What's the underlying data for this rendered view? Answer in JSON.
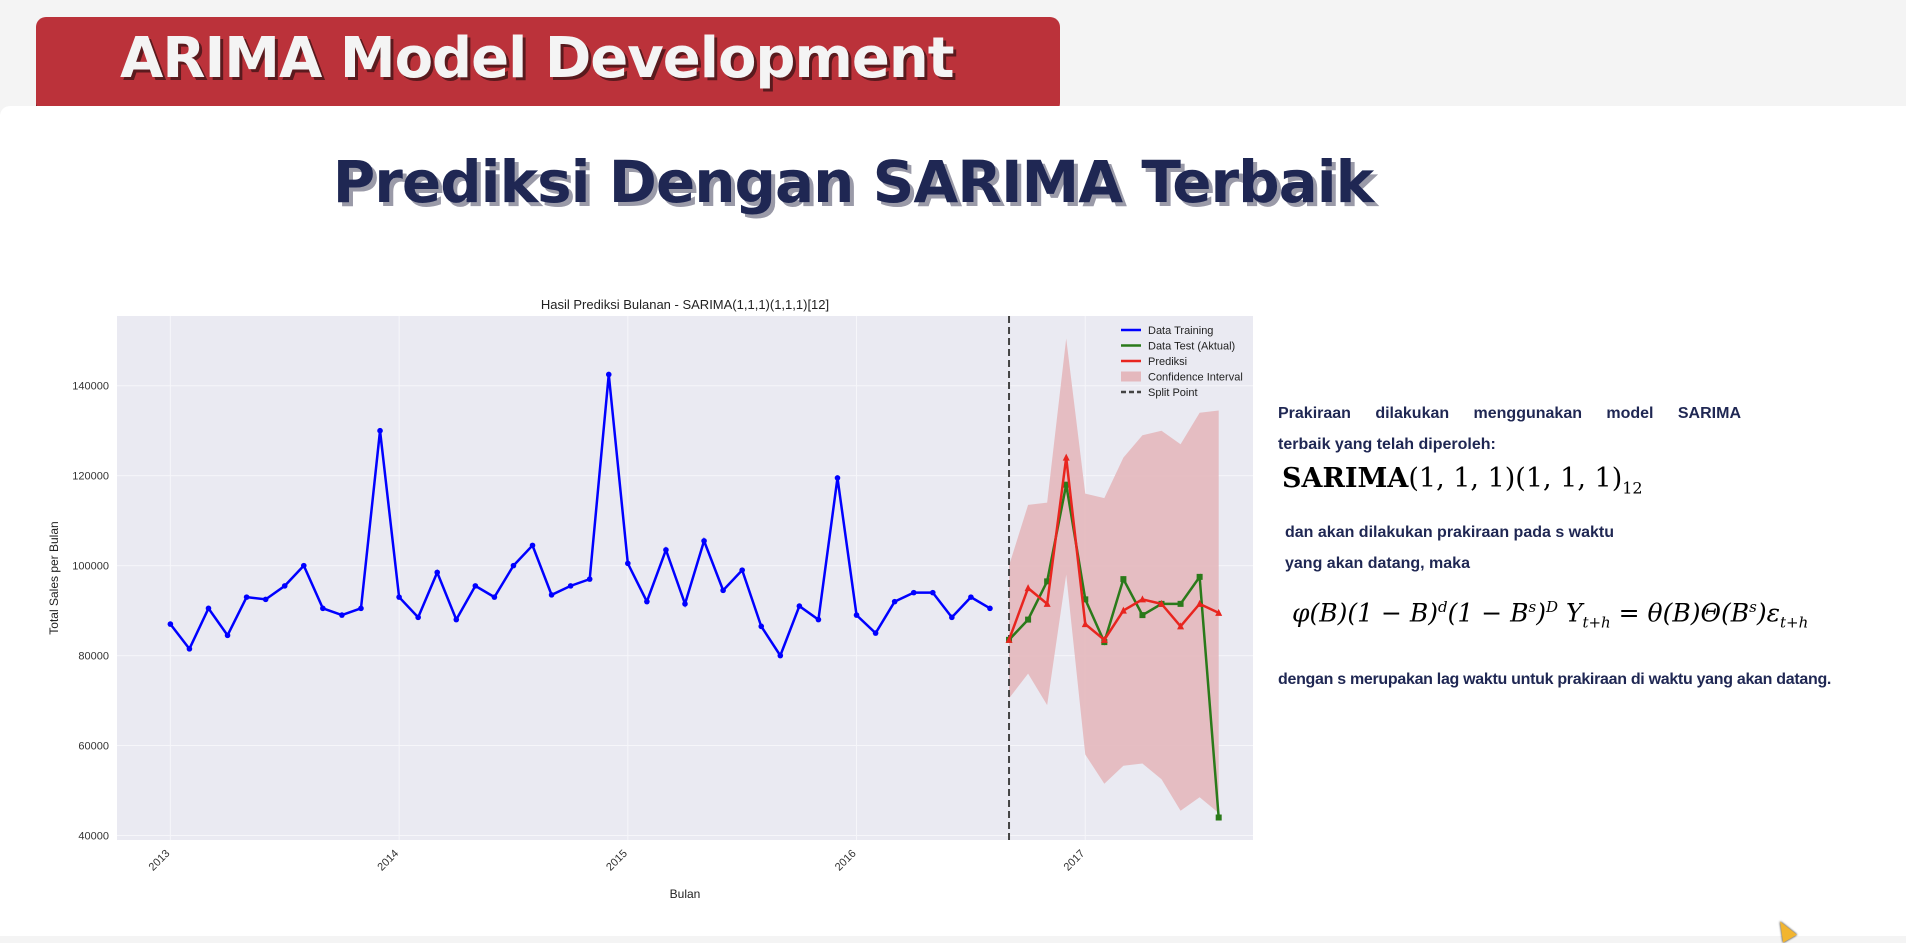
{
  "header": {
    "title": "ARIMA Model Development",
    "accent": "#bb323a"
  },
  "subtitle": "Prediksi Dengan SARIMA Terbaik",
  "description": {
    "p1_line1": "Prakiraan dilakukan menggunakan model SARIMA",
    "p1_line2": "terbaik yang telah diperoleh:",
    "model_name": "SARIMA",
    "model_orders": "(1, 1, 1)(1, 1, 1)",
    "model_season": "12",
    "p2_line1": "dan akan dilakukan prakiraan pada s waktu",
    "p2_line2": "yang akan datang, maka",
    "equation": "φ(B)(1 − B)^d(1 − B^s)^D Y_{t+h} = θ(B)Θ(B^s)ε_{t+h}",
    "p3": "dengan s merupakan lag waktu untuk prakiraan di waktu yang akan datang."
  },
  "chart_data": {
    "type": "line",
    "title": "Hasil Prediksi Bulanan - SARIMA(1,1,1)(1,1,1)[12]",
    "xlabel": "Bulan",
    "ylabel": "Total Sales per Bulan",
    "ylim": [
      39000,
      155500
    ],
    "xlim": [
      "2012-10",
      "2017-10"
    ],
    "yticks": [
      40000,
      60000,
      80000,
      100000,
      120000,
      140000
    ],
    "xticks": [
      "2013",
      "2014",
      "2015",
      "2016",
      "2017"
    ],
    "grid": true,
    "legend_position": "top-right",
    "split_point": "2016-09",
    "series": [
      {
        "name": "Data Training",
        "color": "#0000ff",
        "start": "2013-01",
        "values": [
          87000,
          81500,
          90500,
          84500,
          93000,
          92500,
          95500,
          100000,
          90500,
          89000,
          90500,
          130000,
          93000,
          88500,
          98500,
          88000,
          95500,
          93000,
          100000,
          104500,
          93500,
          95500,
          97000,
          142500,
          100500,
          92000,
          103500,
          91500,
          105500,
          94500,
          99000,
          86500,
          80000,
          91000,
          88000,
          119500,
          89000,
          85000,
          92000,
          94000,
          94000,
          88500,
          93000,
          90500
        ]
      },
      {
        "name": "Data Test (Aktual)",
        "color": "#2a7a1a",
        "start": "2016-09",
        "values": [
          83500,
          88000,
          96500,
          118000,
          92500,
          83000,
          97000,
          89000,
          91500,
          91500,
          97500,
          44000
        ]
      },
      {
        "name": "Prediksi",
        "color": "#e8251f",
        "start": "2016-09",
        "values": [
          83500,
          95000,
          91500,
          124000,
          87000,
          83500,
          90000,
          92500,
          91500,
          86500,
          91500,
          89500
        ]
      }
    ],
    "confidence_interval": {
      "name": "Confidence Interval",
      "color": "#e4b8bd",
      "start": "2016-09",
      "upper": [
        100000,
        113500,
        114000,
        150500,
        116000,
        115000,
        124000,
        129000,
        130000,
        127000,
        134000,
        134500
      ],
      "lower": [
        70500,
        76000,
        69000,
        98000,
        58000,
        51500,
        55500,
        56000,
        52500,
        45500,
        48500,
        45000
      ]
    },
    "split_label": "Split Point"
  }
}
